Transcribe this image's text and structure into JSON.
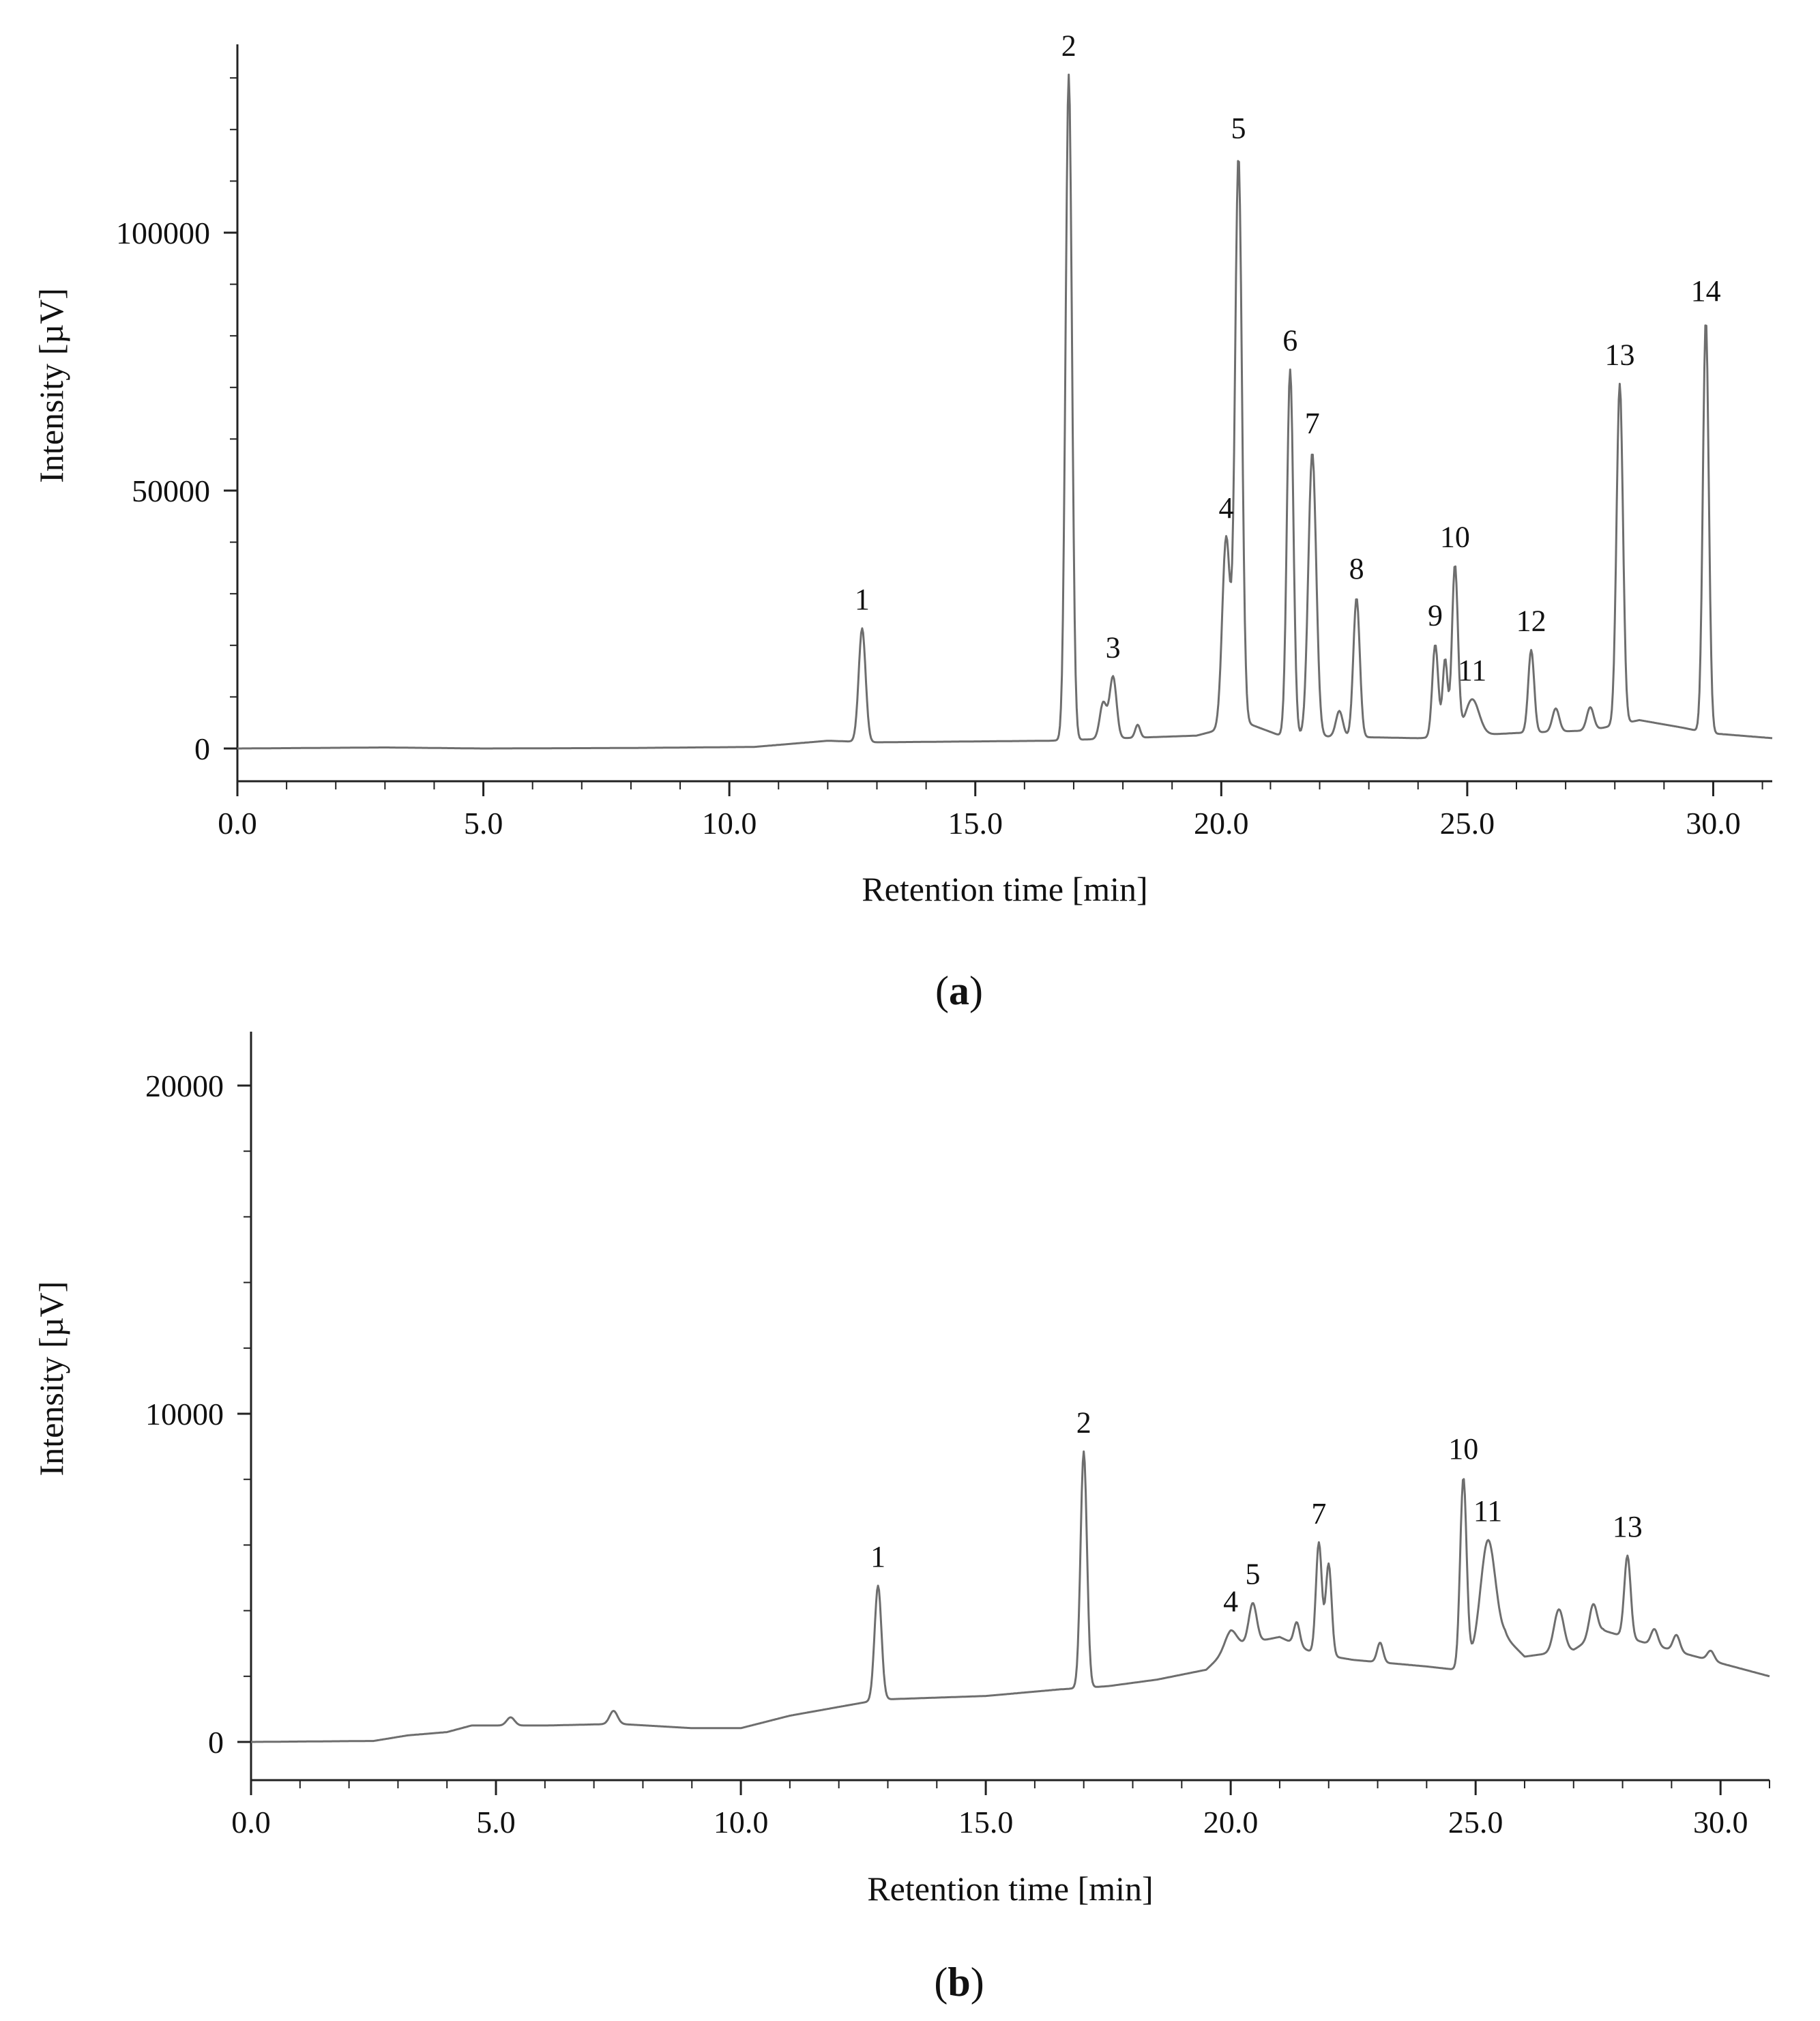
{
  "figure": {
    "panels": [
      {
        "label_open": "(",
        "label_letter": "a",
        "label_close": ")"
      },
      {
        "label_open": "(",
        "label_letter": "b",
        "label_close": ")"
      }
    ]
  },
  "colors": {
    "trace": "#6e6e6e",
    "axis": "#222222",
    "text": "#111111"
  },
  "chart_data": [
    {
      "type": "line",
      "title": "",
      "xlabel": "Retention time [min]",
      "ylabel": "Intensity [µV]",
      "xlim": [
        0,
        31.2
      ],
      "ylim": [
        -6500,
        136000
      ],
      "xticks": [
        0.0,
        5.0,
        10.0,
        15.0,
        20.0,
        25.0,
        30.0
      ],
      "xtick_labels": [
        "0.0",
        "5.0",
        "10.0",
        "15.0",
        "20.0",
        "25.0",
        "30.0"
      ],
      "yticks": [
        0,
        50000,
        100000
      ],
      "ytick_labels": [
        "0",
        "50000",
        "100000"
      ],
      "grid": false,
      "baseline": [
        [
          0,
          0
        ],
        [
          3.0,
          200
        ],
        [
          5.0,
          0
        ],
        [
          8.0,
          100
        ],
        [
          10.5,
          300
        ],
        [
          12.0,
          1500
        ],
        [
          13.0,
          1200
        ],
        [
          16.5,
          1500
        ],
        [
          19.5,
          2500
        ],
        [
          20.5,
          5000
        ],
        [
          21.2,
          2500
        ],
        [
          24.0,
          2000
        ],
        [
          26.0,
          3000
        ],
        [
          27.5,
          3500
        ],
        [
          28.5,
          5500
        ],
        [
          29.4,
          4000
        ],
        [
          29.9,
          3000
        ],
        [
          31.2,
          2000
        ]
      ],
      "peaks": [
        {
          "label": "1",
          "x": 12.7,
          "y": 22000,
          "w": 0.07
        },
        {
          "label": "2",
          "x": 16.9,
          "y": 129000,
          "w": 0.065
        },
        {
          "label": "",
          "x": 17.6,
          "y": 7000,
          "w": 0.07
        },
        {
          "label": "3",
          "x": 17.8,
          "y": 12000,
          "w": 0.07
        },
        {
          "label": "",
          "x": 18.3,
          "y": 2500,
          "w": 0.05
        },
        {
          "label": "4",
          "x": 20.1,
          "y": 37000,
          "w": 0.08
        },
        {
          "label": "5",
          "x": 20.35,
          "y": 110000,
          "w": 0.07
        },
        {
          "label": "6",
          "x": 21.4,
          "y": 71000,
          "w": 0.065
        },
        {
          "label": "7",
          "x": 21.85,
          "y": 55000,
          "w": 0.08
        },
        {
          "label": "",
          "x": 22.4,
          "y": 5000,
          "w": 0.07
        },
        {
          "label": "8",
          "x": 22.75,
          "y": 27000,
          "w": 0.065
        },
        {
          "label": "9",
          "x": 24.35,
          "y": 18000,
          "w": 0.06
        },
        {
          "label": "",
          "x": 24.55,
          "y": 15000,
          "w": 0.05
        },
        {
          "label": "10",
          "x": 24.75,
          "y": 33000,
          "w": 0.06
        },
        {
          "label": "11",
          "x": 25.1,
          "y": 7000,
          "w": 0.14
        },
        {
          "label": "12",
          "x": 26.3,
          "y": 16000,
          "w": 0.06
        },
        {
          "label": "",
          "x": 26.8,
          "y": 4500,
          "w": 0.07
        },
        {
          "label": "",
          "x": 27.5,
          "y": 4500,
          "w": 0.07
        },
        {
          "label": "13",
          "x": 28.1,
          "y": 66000,
          "w": 0.065
        },
        {
          "label": "14",
          "x": 29.85,
          "y": 80000,
          "w": 0.06
        }
      ]
    },
    {
      "type": "line",
      "title": "",
      "xlabel": "Retention time [min]",
      "ylabel": "Intensity [µV]",
      "xlim": [
        0,
        31.0
      ],
      "ylim": [
        -1100,
        21800
      ],
      "xticks": [
        0.0,
        5.0,
        10.0,
        15.0,
        20.0,
        25.0,
        30.0
      ],
      "xtick_labels": [
        "0.0",
        "5.0",
        "10.0",
        "15.0",
        "20.0",
        "25.0",
        "30.0"
      ],
      "yticks": [
        0,
        10000,
        20000
      ],
      "ytick_labels": [
        "0",
        "10000",
        "20000"
      ],
      "grid": false,
      "baseline": [
        [
          0,
          0
        ],
        [
          2.5,
          30
        ],
        [
          3.2,
          200
        ],
        [
          4.0,
          300
        ],
        [
          4.5,
          500
        ],
        [
          6.0,
          500
        ],
        [
          7.5,
          550
        ],
        [
          9.0,
          420
        ],
        [
          10.0,
          420
        ],
        [
          11.0,
          800
        ],
        [
          12.5,
          1200
        ],
        [
          13.0,
          1300
        ],
        [
          15.0,
          1400
        ],
        [
          16.5,
          1600
        ],
        [
          17.5,
          1700
        ],
        [
          18.5,
          1900
        ],
        [
          19.5,
          2200
        ],
        [
          20.0,
          2900
        ],
        [
          21.0,
          3200
        ],
        [
          21.7,
          2700
        ],
        [
          22.5,
          2500
        ],
        [
          24.0,
          2300
        ],
        [
          24.6,
          2200
        ],
        [
          25.6,
          3200
        ],
        [
          26.0,
          2600
        ],
        [
          27.0,
          2800
        ],
        [
          27.6,
          3400
        ],
        [
          28.5,
          3000
        ],
        [
          30.0,
          2400
        ],
        [
          31.0,
          2000
        ]
      ],
      "peaks": [
        {
          "label": "",
          "x": 5.3,
          "y": 250,
          "w": 0.08
        },
        {
          "label": "",
          "x": 7.4,
          "y": 400,
          "w": 0.08
        },
        {
          "label": "1",
          "x": 12.8,
          "y": 3500,
          "w": 0.07
        },
        {
          "label": "2",
          "x": 17.0,
          "y": 7200,
          "w": 0.065
        },
        {
          "label": "4",
          "x": 20.0,
          "y": 500,
          "w": 0.12
        },
        {
          "label": "5",
          "x": 20.45,
          "y": 1200,
          "w": 0.08
        },
        {
          "label": "",
          "x": 21.35,
          "y": 700,
          "w": 0.06
        },
        {
          "label": "7",
          "x": 21.8,
          "y": 3400,
          "w": 0.06
        },
        {
          "label": "",
          "x": 22.0,
          "y": 2800,
          "w": 0.06
        },
        {
          "label": "",
          "x": 23.05,
          "y": 600,
          "w": 0.06
        },
        {
          "label": "10",
          "x": 24.75,
          "y": 5700,
          "w": 0.065
        },
        {
          "label": "11",
          "x": 25.25,
          "y": 3300,
          "w": 0.15
        },
        {
          "label": "",
          "x": 26.7,
          "y": 1300,
          "w": 0.1
        },
        {
          "label": "",
          "x": 27.4,
          "y": 1000,
          "w": 0.08
        },
        {
          "label": "13",
          "x": 28.1,
          "y": 2500,
          "w": 0.065
        },
        {
          "label": "",
          "x": 28.65,
          "y": 500,
          "w": 0.07
        },
        {
          "label": "",
          "x": 29.1,
          "y": 500,
          "w": 0.07
        },
        {
          "label": "",
          "x": 29.8,
          "y": 300,
          "w": 0.07
        }
      ]
    }
  ]
}
